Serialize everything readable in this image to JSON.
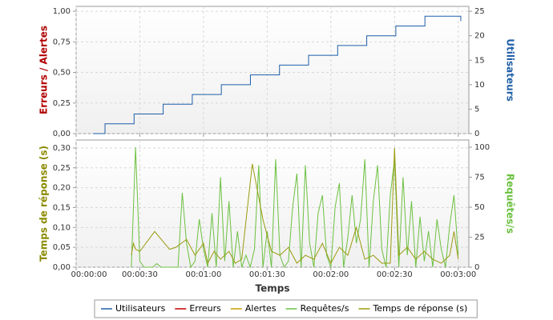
{
  "chart_data": [
    {
      "type": "line",
      "ylabel": "Erreurs / Alertes",
      "ylabel_color": "#b00000",
      "y2label": "Utilisateurs",
      "y2label_color": "#1f5fa8",
      "xlim": [
        0,
        185
      ],
      "xticks": [
        0,
        30,
        60,
        90,
        120,
        150,
        180
      ],
      "ylim": [
        0,
        1.04
      ],
      "yticks": [
        {
          "value": 0,
          "label": "0,00"
        },
        {
          "value": 0.25,
          "label": "0,25"
        },
        {
          "value": 0.5,
          "label": "0,50"
        },
        {
          "value": 0.75,
          "label": "0,75"
        },
        {
          "value": 1,
          "label": "1,00"
        }
      ],
      "y2lim": [
        0,
        26
      ],
      "y2ticks": [
        0,
        5,
        10,
        15,
        20,
        25
      ],
      "grid": true,
      "series": [
        {
          "name": "Utilisateurs",
          "color": "#1f5fa8",
          "axis": "y2",
          "step": true,
          "x": [
            8,
            13.6,
            27.3,
            41,
            54.7,
            68.4,
            82.1,
            95.8,
            109.5,
            123.2,
            136.9,
            150.6,
            164.3,
            181.2
          ],
          "values": [
            0,
            2,
            4,
            6,
            8,
            10,
            12,
            14,
            16,
            18,
            20,
            22,
            24,
            23
          ]
        },
        {
          "name": "Erreurs",
          "color": "#c00000"
        },
        {
          "name": "Alertes",
          "color": "#c8a000"
        }
      ]
    },
    {
      "type": "line",
      "ylabel": "Temps de réponse (s)",
      "ylabel_color": "#8a8a00",
      "y2label": "Requêtes/s",
      "y2label_color": "#6cc040",
      "xlabel": "Temps",
      "xlim": [
        0,
        185
      ],
      "xticks": [
        {
          "value": 0,
          "label": "00:00:00"
        },
        {
          "value": 30,
          "label": "00:00:30"
        },
        {
          "value": 60,
          "label": "00:01:00"
        },
        {
          "value": 90,
          "label": "00:01:30"
        },
        {
          "value": 120,
          "label": "00:02:00"
        },
        {
          "value": 150,
          "label": "00:02:30"
        },
        {
          "value": 180,
          "label": "00:03:00"
        }
      ],
      "ylim": [
        0,
        0.32
      ],
      "yticks": [
        {
          "value": 0,
          "label": "0,00"
        },
        {
          "value": 0.05,
          "label": "0,05"
        },
        {
          "value": 0.1,
          "label": "0,10"
        },
        {
          "value": 0.15,
          "label": "0,15"
        },
        {
          "value": 0.2,
          "label": "0,20"
        },
        {
          "value": 0.25,
          "label": "0,25"
        },
        {
          "value": 0.3,
          "label": "0,30"
        }
      ],
      "y2lim": [
        0,
        106
      ],
      "y2ticks": [
        0,
        25,
        50,
        75,
        100
      ],
      "grid": true,
      "series": [
        {
          "name": "Requêtes/s",
          "color": "#6cc040",
          "axis": "y2",
          "x": [
            26,
            28,
            30,
            32,
            34,
            36,
            38,
            40,
            42,
            44,
            46,
            48,
            50,
            52,
            54,
            56,
            58,
            60,
            62,
            64,
            66,
            68,
            70,
            72,
            74,
            76,
            78,
            80,
            82,
            84,
            86,
            88,
            90,
            92,
            94,
            96,
            98,
            100,
            102,
            104,
            106,
            108,
            110,
            112,
            114,
            116,
            118,
            120,
            122,
            124,
            126,
            128,
            130,
            132,
            134,
            136,
            138,
            140,
            142,
            144,
            146,
            148,
            150,
            152,
            154,
            156,
            158,
            160,
            162,
            164,
            166,
            168,
            170,
            172,
            174,
            176,
            178,
            180
          ],
          "values": [
            0,
            100,
            5,
            0,
            0,
            0,
            3,
            0,
            0,
            0,
            0,
            0,
            62,
            20,
            0,
            5,
            40,
            15,
            0,
            45,
            0,
            75,
            5,
            55,
            0,
            30,
            0,
            10,
            0,
            15,
            85,
            0,
            30,
            0,
            90,
            10,
            0,
            5,
            50,
            78,
            0,
            85,
            20,
            0,
            45,
            60,
            10,
            0,
            50,
            70,
            0,
            25,
            60,
            20,
            40,
            90,
            0,
            55,
            85,
            15,
            0,
            60,
            90,
            0,
            75,
            10,
            55,
            0,
            42,
            5,
            30,
            0,
            40,
            15,
            0,
            35,
            60,
            10
          ]
        },
        {
          "name": "Temps de réponse (s)",
          "color": "#9a9a10",
          "x": [
            26,
            27,
            28,
            30,
            37,
            44,
            47,
            52,
            56,
            60,
            62,
            65,
            68,
            72,
            75,
            78,
            83,
            88,
            92,
            96,
            100,
            104,
            108,
            112,
            116,
            120,
            124,
            128,
            132,
            136,
            140,
            144,
            148,
            150,
            152,
            156,
            160,
            164,
            168,
            172,
            176,
            178,
            180
          ],
          "values": [
            0.03,
            0.06,
            0.045,
            0.04,
            0.09,
            0.045,
            0.05,
            0.07,
            0.03,
            0.06,
            0.01,
            0.04,
            0.02,
            0.04,
            0.01,
            0.02,
            0.26,
            0.12,
            0.04,
            0.03,
            0.05,
            0.01,
            0.03,
            0.02,
            0.06,
            0.01,
            0.05,
            0.03,
            0.1,
            0.02,
            0.03,
            0.01,
            0.01,
            0.3,
            0.03,
            0.05,
            0.02,
            0.04,
            0.02,
            0.01,
            0.03,
            0.09,
            0.02
          ]
        }
      ]
    }
  ]
}
